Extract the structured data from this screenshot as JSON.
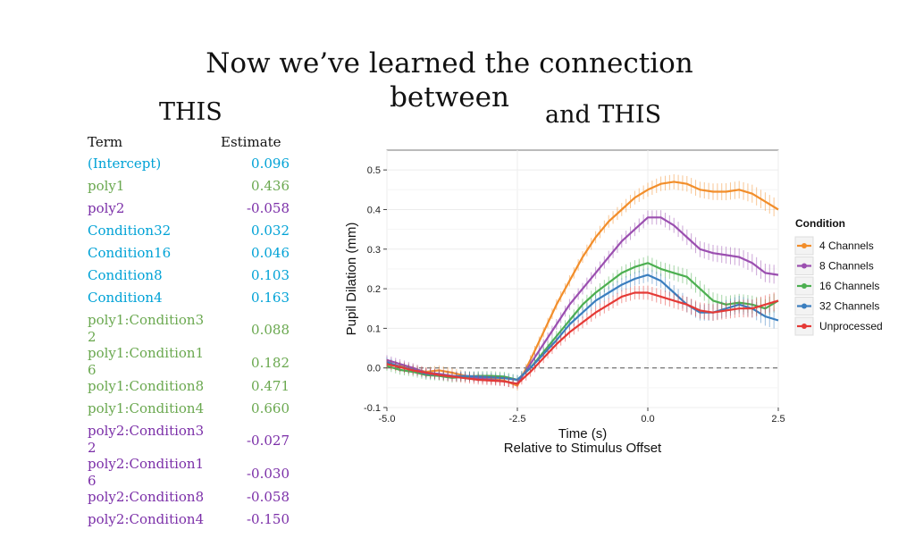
{
  "slide": {
    "title": "Now we’ve learned the connection between",
    "label_left": "THIS",
    "label_right": "and  THIS"
  },
  "table": {
    "header": {
      "term": "Term",
      "estimate": "Estimate"
    },
    "rows": [
      {
        "term": "(Intercept)",
        "estimate": "0.096",
        "color": "#00a2d6"
      },
      {
        "term": "poly1",
        "estimate": "0.436",
        "color": "#6aa84f"
      },
      {
        "term": "poly2",
        "estimate": "-0.058",
        "color": "#7b2fa8"
      },
      {
        "term": "Condition32",
        "estimate": "0.032",
        "color": "#00a2d6"
      },
      {
        "term": "Condition16",
        "estimate": "0.046",
        "color": "#00a2d6"
      },
      {
        "term": "Condition8",
        "estimate": "0.103",
        "color": "#00a2d6"
      },
      {
        "term": "Condition4",
        "estimate": "0.163",
        "color": "#00a2d6"
      },
      {
        "term": "poly1:Condition32",
        "estimate": "0.088",
        "color": "#6aa84f"
      },
      {
        "term": "poly1:Condition16",
        "estimate": "0.182",
        "color": "#6aa84f"
      },
      {
        "term": "poly1:Condition8",
        "estimate": "0.471",
        "color": "#6aa84f"
      },
      {
        "term": "poly1:Condition4",
        "estimate": "0.660",
        "color": "#6aa84f"
      },
      {
        "term": "poly2:Condition32",
        "estimate": "-0.027",
        "color": "#7b2fa8"
      },
      {
        "term": "poly2:Condition16",
        "estimate": "-0.030",
        "color": "#7b2fa8"
      },
      {
        "term": "poly2:Condition8",
        "estimate": "-0.058",
        "color": "#7b2fa8"
      },
      {
        "term": "poly2:Condition4",
        "estimate": "-0.150",
        "color": "#7b2fa8"
      }
    ]
  },
  "chart_data": {
    "type": "line",
    "title": "",
    "xlabel": "Time (s)",
    "xlabel2": "Relative to Stimulus Offset",
    "ylabel": "Pupil Dilation (mm)",
    "xlim": [
      -5.0,
      2.5
    ],
    "ylim": [
      -0.1,
      0.55
    ],
    "xticks": [
      -5.0,
      -2.5,
      0.0,
      2.5
    ],
    "xtick_labels": [
      "-5.0",
      "-2.5",
      "0.0",
      "2.5"
    ],
    "yticks": [
      -0.1,
      0.0,
      0.1,
      0.2,
      0.3,
      0.4,
      0.5
    ],
    "ytick_labels": [
      "-0.1",
      "0.0",
      "0.1",
      "0.2",
      "0.3",
      "0.4",
      "0.5"
    ],
    "grid": true,
    "reference_line_y": 0.0,
    "legend": {
      "title": "Condition",
      "position": "right"
    },
    "x": [
      -5.0,
      -4.75,
      -4.5,
      -4.25,
      -4.0,
      -3.75,
      -3.5,
      -3.25,
      -3.0,
      -2.75,
      -2.5,
      -2.25,
      -2.0,
      -1.75,
      -1.5,
      -1.25,
      -1.0,
      -0.75,
      -0.5,
      -0.25,
      0.0,
      0.25,
      0.5,
      0.75,
      1.0,
      1.25,
      1.5,
      1.75,
      2.0,
      2.25,
      2.5
    ],
    "series": [
      {
        "name": "4 Channels",
        "color": "#f28e2b",
        "values": [
          0.01,
          0.005,
          -0.002,
          -0.01,
          -0.006,
          -0.012,
          -0.02,
          -0.024,
          -0.028,
          -0.032,
          -0.045,
          0.02,
          0.09,
          0.16,
          0.22,
          0.28,
          0.33,
          0.37,
          0.4,
          0.43,
          0.45,
          0.465,
          0.47,
          0.465,
          0.45,
          0.445,
          0.445,
          0.45,
          0.44,
          0.42,
          0.4
        ]
      },
      {
        "name": "8 Channels",
        "color": "#9b4fb0",
        "values": [
          0.02,
          0.01,
          0.0,
          -0.012,
          -0.015,
          -0.02,
          -0.022,
          -0.026,
          -0.03,
          -0.034,
          -0.04,
          0.01,
          0.06,
          0.11,
          0.16,
          0.2,
          0.24,
          0.28,
          0.32,
          0.35,
          0.38,
          0.38,
          0.36,
          0.33,
          0.3,
          0.29,
          0.285,
          0.28,
          0.265,
          0.24,
          0.235
        ]
      },
      {
        "name": "16 Channels",
        "color": "#4caf50",
        "values": [
          0.005,
          -0.005,
          -0.01,
          -0.018,
          -0.02,
          -0.025,
          -0.022,
          -0.02,
          -0.02,
          -0.022,
          -0.03,
          0.0,
          0.04,
          0.08,
          0.12,
          0.16,
          0.19,
          0.215,
          0.24,
          0.255,
          0.265,
          0.25,
          0.24,
          0.23,
          0.2,
          0.17,
          0.16,
          0.165,
          0.16,
          0.15,
          0.17
        ]
      },
      {
        "name": "32 Channels",
        "color": "#3a7ebf",
        "values": [
          0.015,
          0.003,
          -0.005,
          -0.015,
          -0.018,
          -0.022,
          -0.02,
          -0.022,
          -0.024,
          -0.026,
          -0.03,
          0.0,
          0.035,
          0.07,
          0.11,
          0.14,
          0.17,
          0.19,
          0.21,
          0.225,
          0.235,
          0.22,
          0.19,
          0.16,
          0.14,
          0.14,
          0.15,
          0.16,
          0.15,
          0.13,
          0.12
        ]
      },
      {
        "name": "Unprocessed",
        "color": "#e53935",
        "values": [
          0.01,
          0.002,
          -0.006,
          -0.012,
          -0.018,
          -0.022,
          -0.026,
          -0.03,
          -0.032,
          -0.034,
          -0.04,
          -0.01,
          0.025,
          0.06,
          0.09,
          0.115,
          0.14,
          0.16,
          0.18,
          0.19,
          0.19,
          0.18,
          0.17,
          0.16,
          0.145,
          0.14,
          0.145,
          0.15,
          0.15,
          0.16,
          0.17
        ]
      }
    ]
  }
}
